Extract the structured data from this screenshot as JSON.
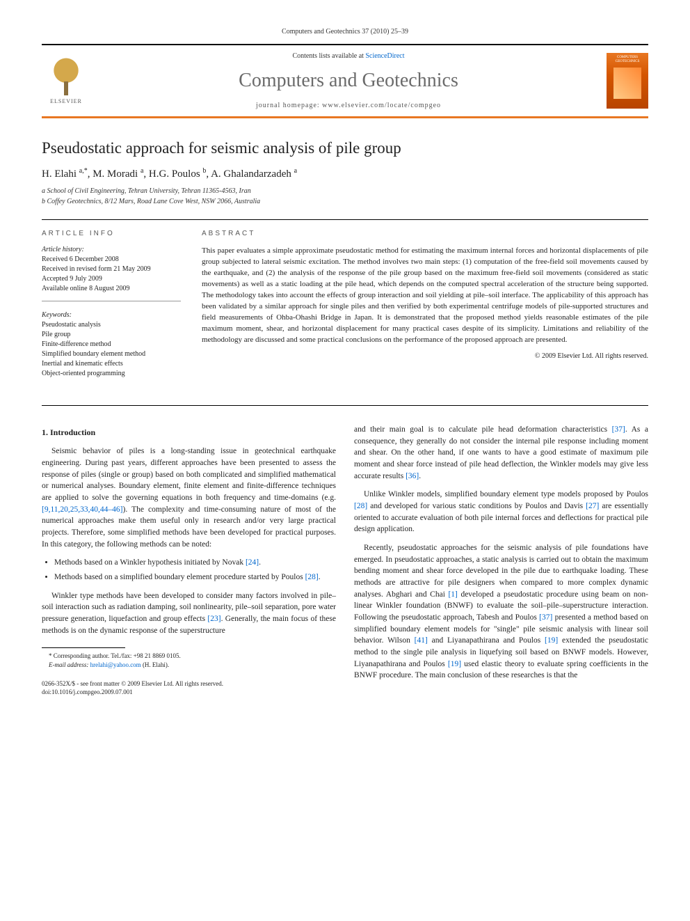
{
  "journal_header_small": "Computers and Geotechnics 37 (2010) 25–39",
  "header": {
    "contents_prefix": "Contents lists available at ",
    "contents_link": "ScienceDirect",
    "journal_name": "Computers and Geotechnics",
    "homepage_prefix": "journal homepage: ",
    "homepage_url": "www.elsevier.com/locate/compgeo",
    "elsevier_label": "ELSEVIER",
    "cover_title": "COMPUTERS GEOTECHNICS"
  },
  "article": {
    "title": "Pseudostatic approach for seismic analysis of pile group",
    "authors_html": "H. Elahi <sup>a,*</sup>, M. Moradi <sup>a</sup>, H.G. Poulos <sup>b</sup>, A. Ghalandarzadeh <sup>a</sup>",
    "affiliations": [
      "a School of Civil Engineering, Tehran University, Tehran 11365-4563, Iran",
      "b Coffey Geotechnics, 8/12 Mars, Road Lane Cove West, NSW 2066, Australia"
    ]
  },
  "info": {
    "heading": "ARTICLE INFO",
    "history_label": "Article history:",
    "history_lines": [
      "Received 6 December 2008",
      "Received in revised form 21 May 2009",
      "Accepted 9 July 2009",
      "Available online 8 August 2009"
    ],
    "keywords_label": "Keywords:",
    "keywords": [
      "Pseudostatic analysis",
      "Pile group",
      "Finite-difference method",
      "Simplified boundary element method",
      "Inertial and kinematic effects",
      "Object-oriented programming"
    ]
  },
  "abstract": {
    "heading": "ABSTRACT",
    "text": "This paper evaluates a simple approximate pseudostatic method for estimating the maximum internal forces and horizontal displacements of pile group subjected to lateral seismic excitation. The method involves two main steps: (1) computation of the free-field soil movements caused by the earthquake, and (2) the analysis of the response of the pile group based on the maximum free-field soil movements (considered as static movements) as well as a static loading at the pile head, which depends on the computed spectral acceleration of the structure being supported. The methodology takes into account the effects of group interaction and soil yielding at pile–soil interface. The applicability of this approach has been validated by a similar approach for single piles and then verified by both experimental centrifuge models of pile-supported structures and field measurements of Ohba-Ohashi Bridge in Japan. It is demonstrated that the proposed method yields reasonable estimates of the pile maximum moment, shear, and horizontal displacement for many practical cases despite of its simplicity. Limitations and reliability of the methodology are discussed and some practical conclusions on the performance of the proposed approach are presented.",
    "copyright": "© 2009 Elsevier Ltd. All rights reserved."
  },
  "body": {
    "section1_heading": "1. Introduction",
    "p1": "Seismic behavior of piles is a long-standing issue in geotechnical earthquake engineering. During past years, different approaches have been presented to assess the response of piles (single or group) based on both complicated and simplified mathematical or numerical analyses. Boundary element, finite element and finite-difference techniques are applied to solve the governing equations in both frequency and time-domains (e.g. [9,11,20,25,33,40,44–46]). The complexity and time-consuming nature of most of the numerical approaches make them useful only in research and/or very large practical projects. Therefore, some simplified methods have been developed for practical purposes. In this category, the following methods can be noted:",
    "bullet1": "Methods based on a Winkler hypothesis initiated by Novak [24].",
    "bullet2": "Methods based on a simplified boundary element procedure started by Poulos [28].",
    "p2": "Winkler type methods have been developed to consider many factors involved in pile–soil interaction such as radiation damping, soil nonlinearity, pile–soil separation, pore water pressure generation, liquefaction and group effects [23]. Generally, the main focus of these methods is on the dynamic response of the superstructure",
    "p2b": "and their main goal is to calculate pile head deformation characteristics [37]. As a consequence, they generally do not consider the internal pile response including moment and shear. On the other hand, if one wants to have a good estimate of maximum pile moment and shear force instead of pile head deflection, the Winkler models may give less accurate results [36].",
    "p3": "Unlike Winkler models, simplified boundary element type models proposed by Poulos [28] and developed for various static conditions by Poulos and Davis [27] are essentially oriented to accurate evaluation of both pile internal forces and deflections for practical pile design application.",
    "p4": "Recently, pseudostatic approaches for the seismic analysis of pile foundations have emerged. In pseudostatic approaches, a static analysis is carried out to obtain the maximum bending moment and shear force developed in the pile due to earthquake loading. These methods are attractive for pile designers when compared to more complex dynamic analyses. Abghari and Chai [1] developed a pseudostatic procedure using beam on non-linear Winkler foundation (BNWF) to evaluate the soil–pile–superstructure interaction. Following the pseudostatic approach, Tabesh and Poulos [37] presented a method based on simplified boundary element models for \"single\" pile seismic analysis with linear soil behavior. Wilson [41] and Liyanapathirana and Poulos [19] extended the pseudostatic method to the single pile analysis in liquefying soil based on BNWF models. However, Liyanapathirana and Poulos [19] used elastic theory to evaluate spring coefficients in the BNWF procedure. The main conclusion of these researches is that the"
  },
  "footnotes": {
    "corr": "* Corresponding author. Tel./fax: +98 21 8869 0105.",
    "email_label": "E-mail address:",
    "email": "hrelahi@yahoo.com",
    "email_author": " (H. Elahi)."
  },
  "footer": {
    "line1": "0266-352X/$ - see front matter © 2009 Elsevier Ltd. All rights reserved.",
    "line2": "doi:10.1016/j.compgeo.2009.07.001"
  },
  "colors": {
    "accent_orange": "#e87722",
    "link_blue": "#0066cc",
    "journal_gray": "#6b6b6b"
  }
}
